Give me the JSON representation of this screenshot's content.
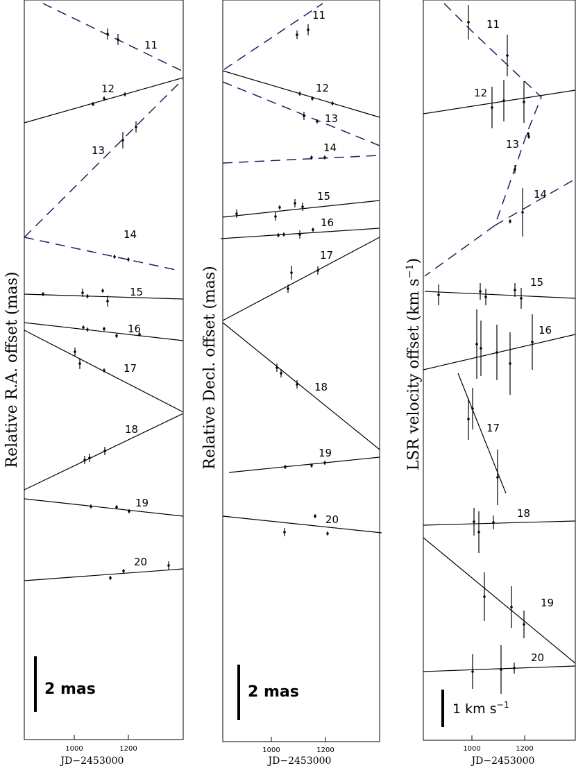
{
  "chart_data": [
    {
      "type": "scatter",
      "ylabel": "Relative R.A. offset (mas)",
      "xlabel": "JD−2453000",
      "xticks": [
        1000,
        1200
      ],
      "scale_bar": "2 mas",
      "features": [
        {
          "label": "11",
          "style": "dashed"
        },
        {
          "label": "12",
          "style": "solid"
        },
        {
          "label": "13",
          "style": "dashed"
        },
        {
          "label": "14",
          "style": "dashed"
        },
        {
          "label": "15",
          "style": "solid"
        },
        {
          "label": "16",
          "style": "solid"
        },
        {
          "label": "17",
          "style": "solid"
        },
        {
          "label": "18",
          "style": "solid"
        },
        {
          "label": "19",
          "style": "solid"
        },
        {
          "label": "20",
          "style": "solid"
        }
      ]
    },
    {
      "type": "scatter",
      "ylabel": "Relative Decl. offset (mas)",
      "xlabel": "JD−2453000",
      "xticks": [
        1000,
        1200
      ],
      "scale_bar": "2 mas",
      "features": [
        {
          "label": "11",
          "style": "dashed"
        },
        {
          "label": "12",
          "style": "solid"
        },
        {
          "label": "13",
          "style": "dashed"
        },
        {
          "label": "14",
          "style": "dashed"
        },
        {
          "label": "15",
          "style": "solid"
        },
        {
          "label": "16",
          "style": "solid"
        },
        {
          "label": "17",
          "style": "solid"
        },
        {
          "label": "18",
          "style": "solid"
        },
        {
          "label": "19",
          "style": "solid"
        },
        {
          "label": "20",
          "style": "solid"
        }
      ]
    },
    {
      "type": "scatter",
      "ylabel": "LSR velocity offset (km s−1)",
      "xlabel": "JD−2453000",
      "xticks": [
        1000,
        1200
      ],
      "scale_bar": "1 km s−1",
      "features": [
        {
          "label": "11",
          "style": "dashed"
        },
        {
          "label": "12",
          "style": "solid"
        },
        {
          "label": "13",
          "style": "dashed"
        },
        {
          "label": "14",
          "style": "dashed"
        },
        {
          "label": "15",
          "style": "solid"
        },
        {
          "label": "16",
          "style": "solid"
        },
        {
          "label": "17",
          "style": "solid"
        },
        {
          "label": "18",
          "style": "solid"
        },
        {
          "label": "19",
          "style": "solid"
        },
        {
          "label": "20",
          "style": "solid"
        }
      ]
    }
  ],
  "colors": {
    "solid_line": "#000000",
    "dashed_line": "#1a1f5c"
  }
}
